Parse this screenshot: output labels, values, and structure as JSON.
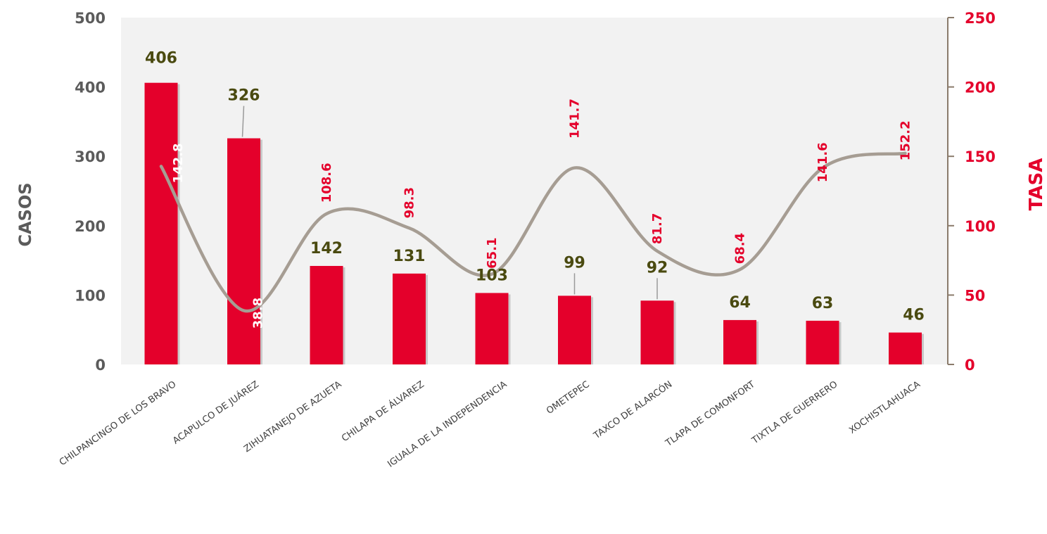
{
  "chart_data": {
    "type": "bar",
    "categories": [
      "CHILPANCINGO DE LOS BRAVO",
      "ACAPULCO DE JUÁREZ",
      "ZIHUATANEJO DE AZUETA",
      "CHILAPA DE ÁLVAREZ",
      "IGUALA DE LA INDEPENDENCIA",
      "OMETEPEC",
      "TAXCO DE ALARCÓN",
      "TLAPA DE COMONFORT",
      "TIXTLA DE GUERRERO",
      "XOCHISTLAHUACA"
    ],
    "series": [
      {
        "type": "bar",
        "axis": "left",
        "values": [
          406,
          326,
          142,
          131,
          103,
          99,
          92,
          64,
          63,
          46
        ],
        "labels": [
          "406",
          "326",
          "142",
          "131",
          "103",
          "99",
          "92",
          "64",
          "63",
          "46"
        ]
      },
      {
        "type": "line",
        "axis": "right",
        "values": [
          142.8,
          38.8,
          108.6,
          98.3,
          65.1,
          141.7,
          81.7,
          68.4,
          141.6,
          152.2
        ],
        "labels": [
          "142.8",
          "38.8",
          "108.6",
          "98.3",
          "65.1",
          "141.7",
          "81.7",
          "68.4",
          "141.6",
          "152.2"
        ]
      }
    ],
    "ylabel": "CASOS",
    "y2label": "TASA",
    "ylim": [
      0,
      500
    ],
    "y2lim": [
      0,
      250
    ],
    "yticks": [
      "0",
      "100",
      "200",
      "300",
      "400",
      "500"
    ],
    "y2ticks": [
      "0",
      "50",
      "100",
      "150",
      "200",
      "250"
    ],
    "grid": false,
    "legend": "none",
    "colors": {
      "bar": "#e4002b",
      "line": "#a69d93",
      "plot_background": "#f2f2f2",
      "right_axis": "#8a7b6b",
      "bar_label": "#4a4a10",
      "line_label": "#e4002b"
    }
  }
}
